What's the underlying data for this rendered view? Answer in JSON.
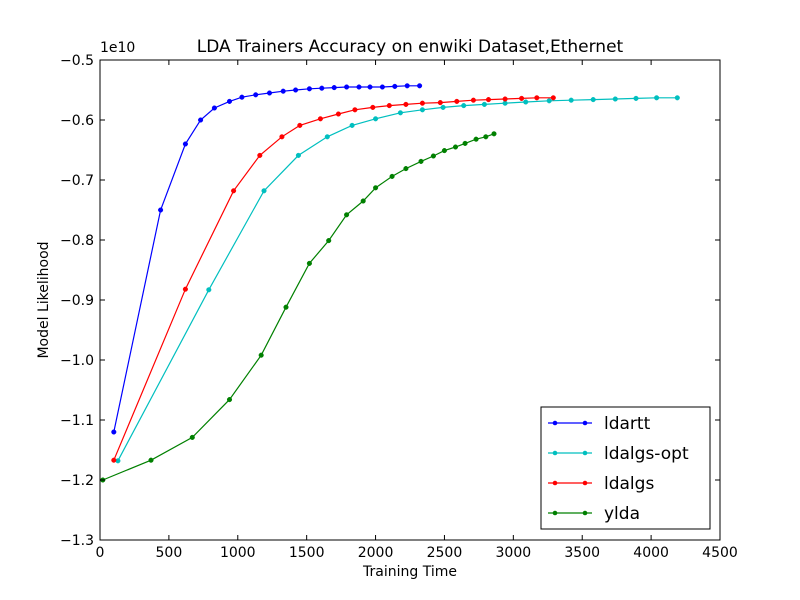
{
  "chart_data": {
    "type": "line",
    "title": "LDA Trainers Accuracy on enwiki Dataset,Ethernet",
    "xlabel": "Training Time",
    "ylabel": "Model Likelihood",
    "y_offset_label": "1e10",
    "xlim": [
      0,
      4500
    ],
    "ylim": [
      -1.3,
      -0.5
    ],
    "xticks": [
      0,
      500,
      1000,
      1500,
      2000,
      2500,
      3000,
      3500,
      4000,
      4500
    ],
    "yticks": [
      -1.3,
      -1.2,
      -1.1,
      -1.0,
      -0.9,
      -0.8,
      -0.7,
      -0.6,
      -0.5
    ],
    "xtick_labels": [
      "0",
      "500",
      "1000",
      "1500",
      "2000",
      "2500",
      "3000",
      "3500",
      "4000",
      "4500"
    ],
    "ytick_labels": [
      "−1.3",
      "−1.2",
      "−1.1",
      "−1.0",
      "−0.9",
      "−0.8",
      "−0.7",
      "−0.6",
      "−0.5"
    ],
    "grid": false,
    "legend_position": "lower-right",
    "series": [
      {
        "name": "ldartt",
        "color": "#0000ff",
        "x": [
          100,
          440,
          620,
          730,
          830,
          940,
          1030,
          1130,
          1230,
          1330,
          1420,
          1520,
          1610,
          1700,
          1790,
          1880,
          1960,
          2050,
          2140,
          2230,
          2320
        ],
        "y": [
          -1.12,
          -0.75,
          -0.64,
          -0.6,
          -0.58,
          -0.569,
          -0.562,
          -0.558,
          -0.555,
          -0.552,
          -0.55,
          -0.548,
          -0.547,
          -0.546,
          -0.545,
          -0.545,
          -0.545,
          -0.545,
          -0.544,
          -0.543,
          -0.543
        ]
      },
      {
        "name": "ldalgs-opt",
        "color": "#00bfbf",
        "x": [
          130,
          790,
          1190,
          1440,
          1650,
          1830,
          2000,
          2180,
          2340,
          2490,
          2640,
          2790,
          2940,
          3090,
          3260,
          3420,
          3580,
          3740,
          3890,
          4040,
          4190
        ],
        "y": [
          -1.168,
          -0.883,
          -0.718,
          -0.659,
          -0.628,
          -0.609,
          -0.598,
          -0.588,
          -0.583,
          -0.579,
          -0.576,
          -0.574,
          -0.572,
          -0.57,
          -0.568,
          -0.567,
          -0.566,
          -0.565,
          -0.564,
          -0.563,
          -0.563
        ]
      },
      {
        "name": "ldalgs",
        "color": "#ff0000",
        "x": [
          100,
          620,
          970,
          1160,
          1320,
          1450,
          1600,
          1730,
          1850,
          1980,
          2100,
          2220,
          2340,
          2470,
          2590,
          2710,
          2820,
          2940,
          3060,
          3170,
          3290
        ],
        "y": [
          -1.167,
          -0.882,
          -0.718,
          -0.659,
          -0.628,
          -0.609,
          -0.598,
          -0.59,
          -0.583,
          -0.579,
          -0.576,
          -0.574,
          -0.572,
          -0.571,
          -0.569,
          -0.567,
          -0.566,
          -0.565,
          -0.564,
          -0.563,
          -0.563
        ]
      },
      {
        "name": "ylda",
        "color": "#008000",
        "x": [
          20,
          370,
          670,
          940,
          1170,
          1350,
          1520,
          1660,
          1790,
          1910,
          2000,
          2120,
          2220,
          2330,
          2420,
          2500,
          2580,
          2650,
          2730,
          2800,
          2860
        ],
        "y": [
          -1.2,
          -1.167,
          -1.129,
          -1.066,
          -0.992,
          -0.912,
          -0.839,
          -0.801,
          -0.758,
          -0.735,
          -0.713,
          -0.694,
          -0.681,
          -0.669,
          -0.66,
          -0.651,
          -0.645,
          -0.639,
          -0.632,
          -0.628,
          -0.623
        ]
      }
    ]
  }
}
